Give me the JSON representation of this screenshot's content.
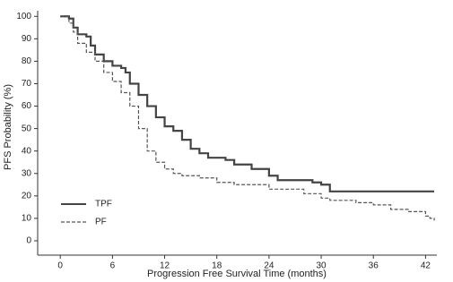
{
  "chart_data": {
    "type": "step",
    "x_label": "Progression Free Survival Time (months)",
    "y_label": "PFS Probability (%)",
    "xlim": [
      -2.6,
      43.3
    ],
    "ylim": [
      -6.4,
      102.5
    ],
    "xticks": [
      0,
      6,
      12,
      18,
      24,
      30,
      36,
      42
    ],
    "yticks": [
      0,
      10,
      20,
      30,
      40,
      50,
      60,
      70,
      80,
      90,
      100
    ],
    "legend": "lower left",
    "series": [
      {
        "name": "TPF",
        "color": "#444444",
        "dash": false,
        "x": [
          0,
          1,
          1.5,
          2,
          3,
          3.5,
          4,
          5,
          6,
          7,
          7.5,
          8,
          9,
          10,
          11,
          12,
          13,
          14,
          15,
          16,
          17,
          19,
          20,
          22,
          24,
          25,
          29,
          30,
          31,
          43
        ],
        "values": [
          100,
          99,
          95,
          92,
          91,
          87,
          83,
          80,
          78,
          77,
          75,
          70,
          65,
          60,
          55,
          51,
          49,
          45,
          41,
          39,
          37,
          36,
          34,
          32,
          29,
          27,
          26,
          25,
          22,
          22
        ]
      },
      {
        "name": "PF",
        "color": "#555555",
        "dash": true,
        "x": [
          0,
          1,
          1.5,
          2,
          3,
          4,
          5,
          6,
          7,
          8,
          9,
          10,
          11,
          12,
          13,
          14,
          16,
          18,
          20,
          24,
          28,
          30,
          31,
          34,
          36,
          38,
          40,
          42,
          42.5,
          43
        ],
        "values": [
          100,
          97,
          93,
          88,
          84,
          80,
          75,
          71,
          66,
          60,
          50,
          40,
          35,
          32,
          30,
          29,
          28,
          26,
          25,
          23,
          21,
          19,
          18,
          17,
          16,
          14,
          13,
          11,
          10,
          9
        ]
      }
    ]
  }
}
